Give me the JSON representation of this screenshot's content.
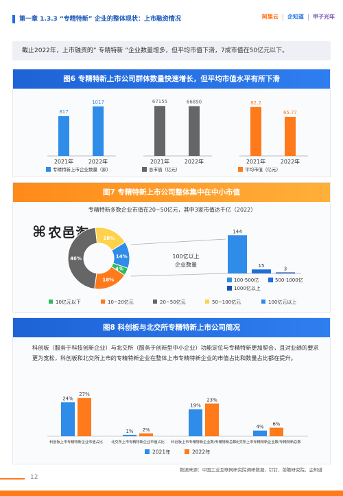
{
  "header": {
    "title": "第一章  1.3.3 “专精特新” 企业的整体现状：上市融资情况",
    "logos": [
      "阿里云",
      "企知道",
      "甲子光年"
    ]
  },
  "intro": {
    "text": "截止2022年，上市融资的” 专精特新 ”企业数量增多，但平均市值下滑，7成市值在50亿元以下。"
  },
  "fig6": {
    "title": "图6 专精特新上市公司群体数量快速增长，但平均市值水平有所下滑",
    "colors": {
      "blue": "#2f8ce8",
      "gray": "#666666",
      "orange": "#ff7a1a"
    }
  },
  "fig7": {
    "title": "图7 专精特新上市公司整体集中在中小市值",
    "description": "专精特新多数企业市值在20~50亿元，其中3家市值达千亿（2022）",
    "watermark": "农邑淘",
    "callout_label_1": "100亿以上",
    "callout_label_2": "企业数量",
    "legend": [
      "10亿元以下",
      "10~20亿元",
      "20~50亿元",
      "50~100亿元",
      "100亿元以上"
    ],
    "bar_legend": [
      "100-500亿",
      "500-1000亿",
      "1000亿以上"
    ]
  },
  "fig8": {
    "title": "图8 科创板与北交所专精特新上市公司简况",
    "description": "科创板（服务于科技创新企业）与北交所（服务于创新型中小企业）功能定位与专精特新更加契合，且对业绩的要求更为宽松，科创板和北交所上市的专精特新企业在整体上市专精特新企业的市值占比和数量占比都在提升。"
  },
  "footer": {
    "source": "数据来源：中国工业互联网研究院调研数据、钉钉、前瞻研究院、企知道",
    "page_number": "12"
  },
  "chart_data": [
    {
      "type": "bar",
      "categories": [
        "2021年",
        "2022年"
      ],
      "series": [
        {
          "name": "专精特新上市企业数量（家）",
          "values": [
            817,
            1017
          ],
          "color": "#2f8ce8"
        }
      ]
    },
    {
      "type": "bar",
      "categories": [
        "2021年",
        "2022年"
      ],
      "series": [
        {
          "name": "总市值（亿元）",
          "values": [
            67155,
            66890
          ],
          "color": "#666666"
        }
      ]
    },
    {
      "type": "bar",
      "categories": [
        "2021年",
        "2022年"
      ],
      "series": [
        {
          "name": "平均市值（亿元）",
          "values": [
            82.2,
            65.77
          ],
          "color": "#ff7a1a"
        }
      ]
    },
    {
      "type": "pie",
      "categories": [
        "10亿元以下",
        "10~20亿元",
        "20~50亿元",
        "50~100亿元",
        "100亿元以上"
      ],
      "values": [
        4,
        18,
        46,
        18,
        14
      ],
      "labels": [
        "4%",
        "18%",
        "46%",
        "18%",
        "14%"
      ],
      "colors": [
        "#2dbb5d",
        "#ff7a1a",
        "#666666",
        "#ffd24d",
        "#2f8ce8"
      ]
    },
    {
      "type": "bar",
      "categories": [
        "100-500亿",
        "500-1000亿",
        "1000亿以上"
      ],
      "values": [
        144,
        15,
        3
      ],
      "colors": [
        "#2f8ce8",
        "#1e6fd9",
        "#1552b0"
      ]
    },
    {
      "type": "bar",
      "categories": [
        "科创板上市专精特新企业市值占比",
        "北交所上市专精特新企业市值占比",
        "科创板上市专精特新企业数/专精特新总数",
        "北交所上市专精特新企业数/专精特新总数"
      ],
      "series": [
        {
          "name": "2021年",
          "values": [
            24,
            1,
            19,
            4
          ],
          "labels": [
            "24%",
            "1%",
            "19%",
            "4%"
          ],
          "color": "#2f8ce8"
        },
        {
          "name": "2022年",
          "values": [
            27,
            2,
            23,
            6
          ],
          "labels": [
            "27%",
            "2%",
            "23%",
            "6%"
          ],
          "color": "#ff7a1a"
        }
      ]
    }
  ]
}
